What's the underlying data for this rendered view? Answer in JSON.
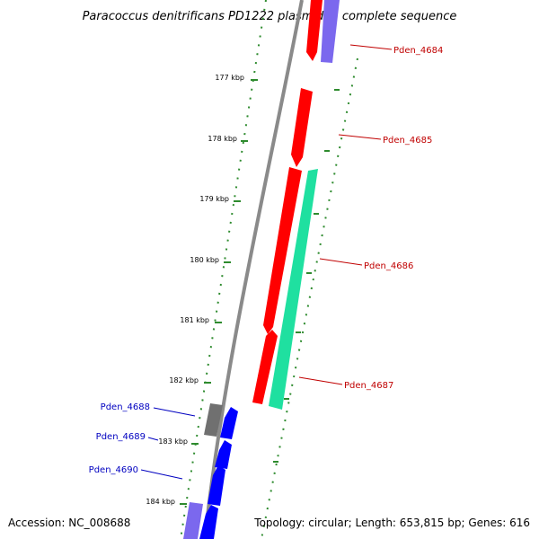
{
  "title": "Paracoccus denitrificans PD1222 plasmid 1, complete sequence",
  "footer": {
    "accession": "Accession: NC_008688",
    "stats": "Topology: circular; Length: 653,815 bp; Genes: 616"
  },
  "colors": {
    "backbone": "#8a8a8a",
    "ruler_dots": "#2e8b2e",
    "forward_strand_label": "#c00000",
    "reverse_strand_label": "#0000c0",
    "red_gene": "#ff0000",
    "green_gene": "#1fe0a0",
    "blue_gene": "#0000ff",
    "purple_gene": "#7b68ee",
    "grey_gene": "#707070"
  },
  "ruler_ticks": [
    {
      "label": "177 kbp"
    },
    {
      "label": "178 kbp"
    },
    {
      "label": "179 kbp"
    },
    {
      "label": "180 kbp"
    },
    {
      "label": "181 kbp"
    },
    {
      "label": "182 kbp"
    },
    {
      "label": "183 kbp"
    },
    {
      "label": "184 kbp"
    }
  ],
  "gene_labels": [
    {
      "name": "Pden_4684",
      "strand": "forward"
    },
    {
      "name": "Pden_4685",
      "strand": "forward"
    },
    {
      "name": "Pden_4686",
      "strand": "forward"
    },
    {
      "name": "Pden_4687",
      "strand": "forward"
    },
    {
      "name": "Pden_4688",
      "strand": "reverse"
    },
    {
      "name": "Pden_4689",
      "strand": "reverse"
    },
    {
      "name": "Pden_4690",
      "strand": "reverse"
    }
  ]
}
